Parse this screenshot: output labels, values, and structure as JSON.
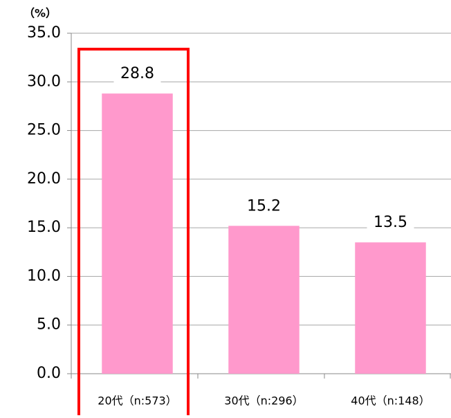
{
  "chart_data": {
    "type": "bar",
    "y_unit_label": "（%）",
    "categories": [
      "20代（n:573）",
      "30代（n:296）",
      "40代（n:148）"
    ],
    "values": [
      28.8,
      15.2,
      13.5
    ],
    "color": "#ff99cc",
    "ylim": [
      0,
      35
    ],
    "yticks": [
      {
        "value": 0,
        "label": "0.0"
      },
      {
        "value": 5,
        "label": "5.0"
      },
      {
        "value": 10,
        "label": "10.0"
      },
      {
        "value": 15,
        "label": "15.0"
      },
      {
        "value": 20,
        "label": "20.0"
      },
      {
        "value": 25,
        "label": "25.0"
      },
      {
        "value": 30,
        "label": "30.0"
      },
      {
        "value": 35,
        "label": "35.0"
      }
    ],
    "grid": true
  }
}
